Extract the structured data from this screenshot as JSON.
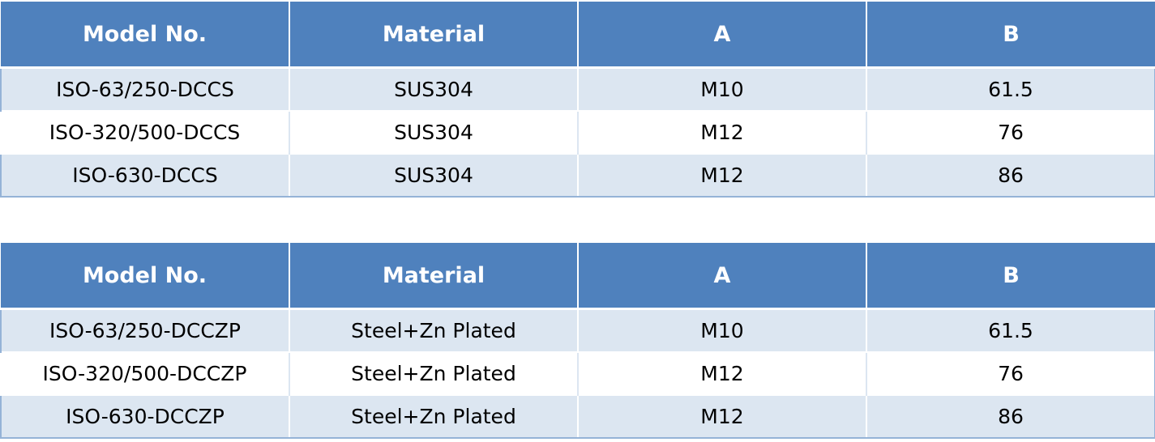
{
  "tables": [
    {
      "headers": [
        "Model No.",
        "Material",
        "A",
        "B"
      ],
      "rows": [
        [
          "ISO-63/250-DCCS",
          "SUS304",
          "M10",
          "61.5"
        ],
        [
          "ISO-320/500-DCCS",
          "SUS304",
          "M12",
          "76"
        ],
        [
          "ISO-630-DCCS",
          "SUS304",
          "M12",
          "86"
        ]
      ]
    },
    {
      "headers": [
        "Model No.",
        "Material",
        "A",
        "B"
      ],
      "rows": [
        [
          "ISO-63/250-DCCZP",
          "Steel+Zn Plated",
          "M10",
          "61.5"
        ],
        [
          "ISO-320/500-DCCZP",
          "Steel+Zn Plated",
          "M12",
          "76"
        ],
        [
          "ISO-630-DCCZP",
          "Steel+Zn Plated",
          "M12",
          "86"
        ]
      ]
    }
  ],
  "colors": {
    "header_background": "#4f81bd",
    "header_text": "#ffffff",
    "row_band": "#dce6f1",
    "row_plain": "#ffffff",
    "outer_border": "#95b3d7"
  }
}
